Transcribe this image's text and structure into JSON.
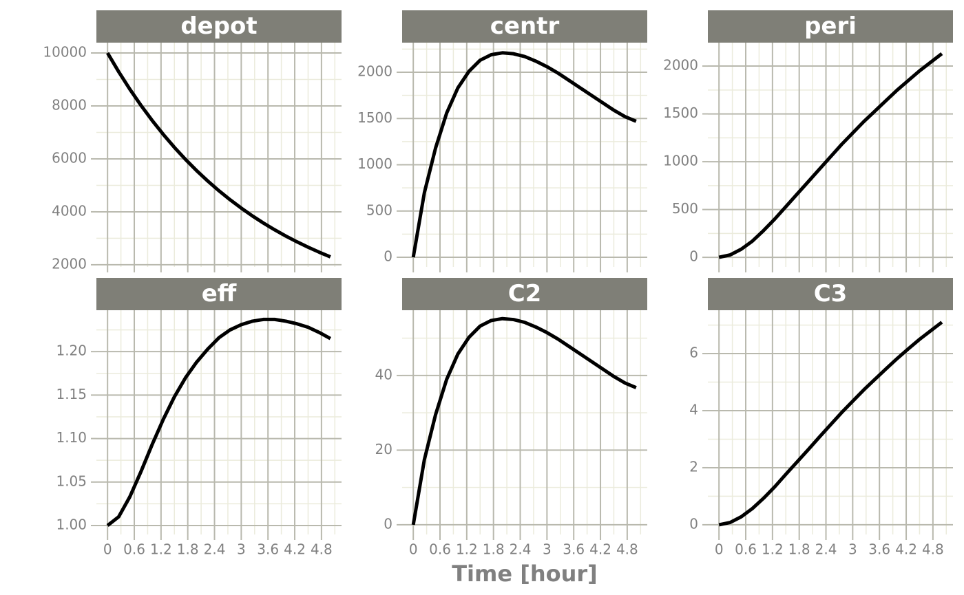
{
  "xlabel": "Time [hour]",
  "chart_data": [
    {
      "type": "line",
      "title": "depot",
      "x": [
        0,
        0.25,
        0.5,
        0.75,
        1,
        1.25,
        1.5,
        1.75,
        2,
        2.25,
        2.5,
        2.75,
        3,
        3.25,
        3.5,
        3.75,
        4,
        4.25,
        4.5,
        4.75,
        5
      ],
      "values": [
        10000,
        9291,
        8632,
        8021,
        7453,
        6925,
        6434,
        5978,
        5554,
        5161,
        4795,
        4455,
        4140,
        3846,
        3574,
        3320,
        3085,
        2867,
        2663,
        2475,
        2299
      ],
      "color": "#000000",
      "xlim": [
        -0.25,
        5.25
      ],
      "xticks": [
        0,
        0.6,
        1.2,
        1.8,
        2.4,
        3,
        3.6,
        4.2,
        4.8
      ],
      "ylim": [
        1920,
        10390
      ],
      "yticks": [
        2000,
        4000,
        6000,
        8000,
        10000
      ],
      "grid": true
    },
    {
      "type": "line",
      "title": "centr",
      "x": [
        0,
        0.25,
        0.5,
        0.75,
        1,
        1.25,
        1.5,
        1.75,
        2,
        2.25,
        2.5,
        2.75,
        3,
        3.25,
        3.5,
        3.75,
        4,
        4.25,
        4.5,
        4.75,
        5
      ],
      "values": [
        0,
        700,
        1180,
        1560,
        1830,
        2010,
        2130,
        2190,
        2210,
        2200,
        2170,
        2120,
        2060,
        1990,
        1910,
        1830,
        1750,
        1670,
        1590,
        1520,
        1470
      ],
      "color": "#000000",
      "xlim": [
        -0.25,
        5.25
      ],
      "xticks": [
        0,
        0.6,
        1.2,
        1.8,
        2.4,
        3,
        3.6,
        4.2,
        4.8
      ],
      "ylim": [
        -104,
        2320
      ],
      "yticks": [
        0,
        500,
        1000,
        1500,
        2000
      ],
      "grid": true
    },
    {
      "type": "line",
      "title": "peri",
      "x": [
        0,
        0.25,
        0.5,
        0.75,
        1,
        1.25,
        1.5,
        1.75,
        2,
        2.25,
        2.5,
        2.75,
        3,
        3.25,
        3.5,
        3.75,
        4,
        4.25,
        4.5,
        4.75,
        5
      ],
      "values": [
        0,
        25,
        85,
        170,
        280,
        400,
        530,
        660,
        790,
        920,
        1050,
        1180,
        1300,
        1420,
        1530,
        1640,
        1750,
        1850,
        1950,
        2040,
        2130
      ],
      "color": "#000000",
      "xlim": [
        -0.25,
        5.25
      ],
      "xticks": [
        0,
        0.6,
        1.2,
        1.8,
        2.4,
        3,
        3.6,
        4.2,
        4.8
      ],
      "ylim": [
        -100,
        2245
      ],
      "yticks": [
        0,
        500,
        1000,
        1500,
        2000
      ],
      "grid": true
    },
    {
      "type": "line",
      "title": "eff",
      "x": [
        0,
        0.25,
        0.5,
        0.75,
        1,
        1.25,
        1.5,
        1.75,
        2,
        2.25,
        2.5,
        2.75,
        3,
        3.25,
        3.5,
        3.75,
        4,
        4.25,
        4.5,
        4.75,
        5
      ],
      "values": [
        1.0,
        1.01,
        1.033,
        1.062,
        1.093,
        1.122,
        1.148,
        1.17,
        1.188,
        1.203,
        1.216,
        1.225,
        1.231,
        1.235,
        1.237,
        1.237,
        1.235,
        1.232,
        1.228,
        1.222,
        1.215
      ],
      "color": "#000000",
      "xlim": [
        -0.25,
        5.25
      ],
      "xticks": [
        0,
        0.6,
        1.2,
        1.8,
        2.4,
        3,
        3.6,
        4.2,
        4.8
      ],
      "ylim": [
        0.9897,
        1.2476
      ],
      "yticks": [
        {
          "value": 1,
          "label": "1.00"
        },
        1.05,
        {
          "value": 1.1,
          "label": "1.10"
        },
        1.15,
        {
          "value": 1.2,
          "label": "1.20"
        }
      ],
      "grid": true
    },
    {
      "type": "line",
      "title": "C2",
      "x": [
        0,
        0.25,
        0.5,
        0.75,
        1,
        1.25,
        1.5,
        1.75,
        2,
        2.25,
        2.5,
        2.75,
        3,
        3.25,
        3.5,
        3.75,
        4,
        4.25,
        4.5,
        4.75,
        5
      ],
      "values": [
        0,
        17.5,
        29.5,
        39,
        45.75,
        50.25,
        53.25,
        54.75,
        55.25,
        55,
        54.25,
        53,
        51.5,
        49.75,
        47.75,
        45.75,
        43.75,
        41.75,
        39.75,
        38,
        36.75
      ],
      "color": "#000000",
      "xlim": [
        -0.25,
        5.25
      ],
      "xticks": [
        0,
        0.6,
        1.2,
        1.8,
        2.4,
        3,
        3.6,
        4.2,
        4.8
      ],
      "ylim": [
        -2.6,
        57.5
      ],
      "yticks": [
        0,
        20,
        40
      ],
      "grid": true
    },
    {
      "type": "line",
      "title": "C3",
      "x": [
        0,
        0.25,
        0.5,
        0.75,
        1,
        1.25,
        1.5,
        1.75,
        2,
        2.25,
        2.5,
        2.75,
        3,
        3.25,
        3.5,
        3.75,
        4,
        4.25,
        4.5,
        4.75,
        5
      ],
      "values": [
        0,
        0.08,
        0.28,
        0.57,
        0.93,
        1.33,
        1.77,
        2.2,
        2.63,
        3.07,
        3.5,
        3.93,
        4.33,
        4.73,
        5.1,
        5.47,
        5.83,
        6.17,
        6.5,
        6.8,
        7.1
      ],
      "color": "#000000",
      "xlim": [
        -0.25,
        5.25
      ],
      "xticks": [
        0,
        0.6,
        1.2,
        1.8,
        2.4,
        3,
        3.6,
        4.2,
        4.8
      ],
      "ylim": [
        -0.34,
        7.52
      ],
      "yticks": [
        0,
        2,
        4,
        6
      ],
      "grid": true
    }
  ]
}
